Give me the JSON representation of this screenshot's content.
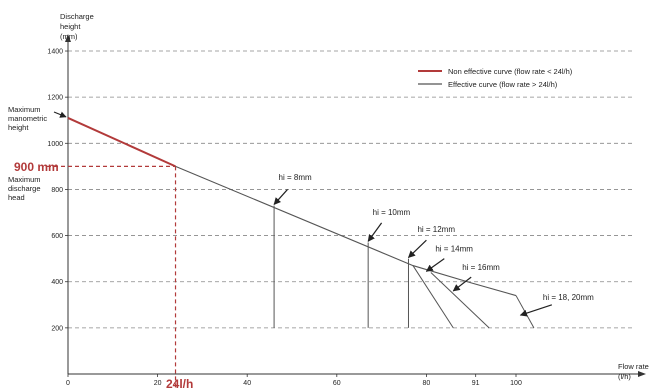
{
  "chart_data": {
    "type": "line",
    "xlabel": [
      "Flow rate",
      "(l/h)"
    ],
    "ylabel": [
      "Discharge",
      "height",
      "(mm)"
    ],
    "xlim": [
      0,
      125
    ],
    "ylim": [
      0,
      1400
    ],
    "x_ticks": [
      {
        "value": 0,
        "label": "0"
      },
      {
        "value": 20,
        "label": "20"
      },
      {
        "value": 40,
        "label": "40"
      },
      {
        "value": 60,
        "label": "60"
      },
      {
        "value": 80,
        "label": "80"
      },
      {
        "value": 91,
        "label": "91"
      },
      {
        "value": 100,
        "label": "100"
      }
    ],
    "y_ticks": [
      200,
      400,
      600,
      800,
      1000,
      1200,
      1400
    ],
    "grid": {
      "horizontal_dashed": [
        200,
        400,
        600,
        800,
        1000,
        1200,
        1400
      ]
    },
    "legend": {
      "placement": "top-right",
      "entries": [
        {
          "label": "Non effective curve (flow rate < 24l/h)",
          "color": "#b23a3a"
        },
        {
          "label": "Effective curve (flow rate > 24l/h)",
          "color": "#555555"
        }
      ]
    },
    "series": [
      {
        "name": "Non effective curve (flow rate < 24l/h)",
        "color": "#b23a3a",
        "points": [
          [
            0,
            1110
          ],
          [
            24,
            900
          ]
        ]
      },
      {
        "name": "Effective curve (flow rate > 24l/h)",
        "color": "#555555",
        "points": [
          [
            24,
            900
          ],
          [
            77,
            470
          ],
          [
            90,
            395
          ],
          [
            100,
            340
          ]
        ]
      }
    ],
    "branches": [
      {
        "label": "hi = 8mm",
        "points": [
          [
            46,
            730
          ],
          [
            46,
            200
          ]
        ],
        "label_at": [
          47,
          840
        ],
        "arrow_from": [
          49,
          800
        ],
        "arrow_to": [
          46,
          735
        ]
      },
      {
        "label": "hi = 10mm",
        "points": [
          [
            67,
            570
          ],
          [
            67,
            200
          ]
        ],
        "label_at": [
          68,
          690
        ],
        "arrow_from": [
          70,
          655
        ],
        "arrow_to": [
          67,
          575
        ]
      },
      {
        "label": "hi = 12mm",
        "points": [
          [
            76,
            500
          ],
          [
            76,
            200
          ]
        ],
        "label_at": [
          78,
          615
        ],
        "arrow_from": [
          80,
          580
        ],
        "arrow_to": [
          76,
          505
        ]
      },
      {
        "label": "hi = 14mm",
        "points": [
          [
            77,
            470
          ],
          [
            86,
            200
          ]
        ],
        "label_at": [
          82,
          530
        ],
        "arrow_from": [
          84,
          500
        ],
        "arrow_to": [
          80,
          445
        ]
      },
      {
        "label": "hi = 16mm",
        "points": [
          [
            81,
            440
          ],
          [
            94,
            200
          ]
        ],
        "label_at": [
          88,
          450
        ],
        "arrow_from": [
          90,
          420
        ],
        "arrow_to": [
          86,
          360
        ]
      },
      {
        "label": "hi = 18, 20mm",
        "points": [
          [
            100,
            340
          ],
          [
            104,
            200
          ]
        ],
        "label_at": [
          106,
          320
        ],
        "arrow_from": [
          108,
          300
        ],
        "arrow_to": [
          101,
          255
        ]
      }
    ],
    "annotations": {
      "max_manometric": {
        "text": [
          "Maximum",
          "manometric",
          "height"
        ],
        "value": 1110
      },
      "max_discharge": {
        "text": [
          "Maximum",
          "discharge",
          "head"
        ]
      },
      "discharge_value": "900 mm",
      "flow_value": "24l/h",
      "marker": {
        "x": 24,
        "y": 900,
        "color": "#b23a3a"
      }
    }
  }
}
